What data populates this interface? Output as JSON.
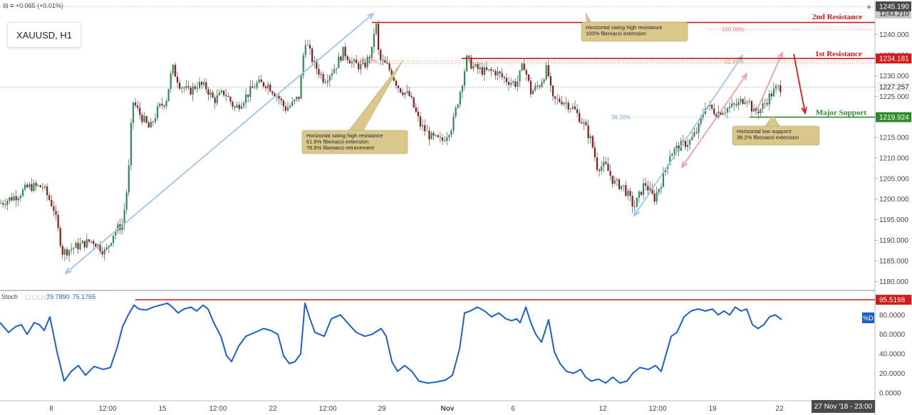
{
  "header": {
    "change_text": "+0.065 (+0.01%)",
    "symbol": "XAUUSD, H1"
  },
  "stoch_header": {
    "name": "Stoch",
    "k_value": "79.7890",
    "d_value": "75.1765",
    "d_badge": "%D"
  },
  "crosshair_date": "27 Nov '18 - 23:00",
  "colors": {
    "resistance": "#d11a1a",
    "support": "#2e8b2e",
    "candle_up": "#2e8b57",
    "candle_down": "#8b1a1a",
    "stoch_line": "#1e5fd0",
    "fib_blue_arrow": "#9ec3ee",
    "fib_pink_arrow": "#f0a0a8",
    "annotation_bg": "#d9c88a"
  },
  "chart_data": {
    "type": "candlestick",
    "symbol": "XAUUSD",
    "timeframe": "H1",
    "y_ticks": [
      "1245.000",
      "1240.000",
      "1235.000",
      "1230.000",
      "1225.000",
      "1220.000",
      "1215.000",
      "1210.000",
      "1205.000",
      "1200.000",
      "1195.000",
      "1190.000",
      "1185.000",
      "1180.000"
    ],
    "ylim": [
      1178.5,
      1246.5
    ],
    "x_ticks": [
      "8",
      "12:00",
      "15",
      "12:00",
      "22",
      "12:00",
      "29",
      "Nov",
      "6",
      "12",
      "12:00",
      "19",
      "22"
    ],
    "price_path": [
      [
        0,
        1199
      ],
      [
        25,
        1201
      ],
      [
        40,
        1203
      ],
      [
        60,
        1203
      ],
      [
        75,
        1198
      ],
      [
        88,
        1187
      ],
      [
        100,
        1188
      ],
      [
        115,
        1189
      ],
      [
        130,
        1190
      ],
      [
        148,
        1187
      ],
      [
        160,
        1192
      ],
      [
        172,
        1194
      ],
      [
        180,
        1205
      ],
      [
        186,
        1224
      ],
      [
        195,
        1221
      ],
      [
        210,
        1217
      ],
      [
        222,
        1222
      ],
      [
        233,
        1224
      ],
      [
        242,
        1232
      ],
      [
        252,
        1228
      ],
      [
        265,
        1226
      ],
      [
        278,
        1228
      ],
      [
        290,
        1227
      ],
      [
        300,
        1224
      ],
      [
        315,
        1226
      ],
      [
        330,
        1222
      ],
      [
        345,
        1225
      ],
      [
        360,
        1228
      ],
      [
        375,
        1228
      ],
      [
        390,
        1225
      ],
      [
        400,
        1222
      ],
      [
        410,
        1223
      ],
      [
        420,
        1225
      ],
      [
        428,
        1239
      ],
      [
        440,
        1233
      ],
      [
        455,
        1229
      ],
      [
        470,
        1232
      ],
      [
        482,
        1236
      ],
      [
        495,
        1233
      ],
      [
        510,
        1232
      ],
      [
        522,
        1236
      ],
      [
        527,
        1244
      ],
      [
        532,
        1234
      ],
      [
        545,
        1232
      ],
      [
        560,
        1227
      ],
      [
        575,
        1225
      ],
      [
        590,
        1218
      ],
      [
        605,
        1215
      ],
      [
        620,
        1214
      ],
      [
        635,
        1218
      ],
      [
        648,
        1228
      ],
      [
        655,
        1234
      ],
      [
        665,
        1232
      ],
      [
        680,
        1231
      ],
      [
        695,
        1231
      ],
      [
        710,
        1229
      ],
      [
        725,
        1228
      ],
      [
        735,
        1233
      ],
      [
        745,
        1226
      ],
      [
        758,
        1228
      ],
      [
        768,
        1232
      ],
      [
        775,
        1224
      ],
      [
        790,
        1224
      ],
      [
        805,
        1222
      ],
      [
        820,
        1218
      ],
      [
        830,
        1214
      ],
      [
        838,
        1208
      ],
      [
        850,
        1208
      ],
      [
        862,
        1204
      ],
      [
        875,
        1203
      ],
      [
        890,
        1198
      ],
      [
        905,
        1204
      ],
      [
        918,
        1200
      ],
      [
        930,
        1205
      ],
      [
        940,
        1211
      ],
      [
        955,
        1213
      ],
      [
        968,
        1214
      ],
      [
        980,
        1217
      ],
      [
        990,
        1223
      ],
      [
        1005,
        1221
      ],
      [
        1020,
        1222
      ],
      [
        1035,
        1223
      ],
      [
        1048,
        1225
      ],
      [
        1058,
        1221
      ],
      [
        1068,
        1222
      ],
      [
        1080,
        1225
      ],
      [
        1090,
        1227
      ],
      [
        1097,
        1227.257
      ]
    ],
    "price_tags": [
      {
        "value": "1245.190",
        "kind": "current-high"
      },
      {
        "value": "1243.210",
        "kind": "second-resistance"
      },
      {
        "value": "1234.181",
        "kind": "first-resistance"
      },
      {
        "value": "1227.257",
        "kind": "last-price"
      },
      {
        "value": "1219.924",
        "kind": "major-support"
      }
    ],
    "levels": [
      {
        "name": "2nd Resistance",
        "price": 1243.21,
        "color": "#d11a1a"
      },
      {
        "name": "1st Resistance",
        "price": 1234.181,
        "color": "#d11a1a"
      },
      {
        "name": "Major Support",
        "price": 1219.924,
        "color": "#2e8b2e"
      }
    ],
    "fib_labels": [
      {
        "text": "100.00%",
        "price": 1241.3
      },
      {
        "text": "78.60%",
        "price": 1233.6
      },
      {
        "text": "61.80%",
        "price": 1233.4
      },
      {
        "text": "38.20%",
        "price": 1219.9
      }
    ],
    "annotations": [
      {
        "lines": [
          "Horizontal swing high resistance",
          "100% fibonacci extension"
        ]
      },
      {
        "lines": [
          "Horizontal swing high resistance",
          "61.8% fibonacci extension",
          "78.6% fibonacci retracement"
        ]
      },
      {
        "lines": [
          "Horizontal low supporrt",
          "38.2% fibonacci extension"
        ]
      }
    ],
    "stochastic": {
      "y_ticks": [
        "80.0000",
        "60.0000",
        "40.0000",
        "20.0000",
        "0.0000"
      ],
      "ylim": [
        -6,
        100
      ],
      "level": "95.5198",
      "d_path": [
        [
          0,
          72
        ],
        [
          12,
          62
        ],
        [
          22,
          68
        ],
        [
          30,
          70
        ],
        [
          38,
          60
        ],
        [
          48,
          72
        ],
        [
          55,
          70
        ],
        [
          62,
          64
        ],
        [
          70,
          78
        ],
        [
          80,
          42
        ],
        [
          90,
          12
        ],
        [
          100,
          22
        ],
        [
          110,
          28
        ],
        [
          120,
          18
        ],
        [
          132,
          27
        ],
        [
          145,
          24
        ],
        [
          155,
          26
        ],
        [
          165,
          48
        ],
        [
          172,
          68
        ],
        [
          180,
          80
        ],
        [
          188,
          90
        ],
        [
          195,
          86
        ],
        [
          205,
          85
        ],
        [
          215,
          88
        ],
        [
          225,
          90
        ],
        [
          235,
          92
        ],
        [
          242,
          88
        ],
        [
          250,
          82
        ],
        [
          258,
          86
        ],
        [
          268,
          88
        ],
        [
          276,
          84
        ],
        [
          285,
          90
        ],
        [
          292,
          86
        ],
        [
          300,
          72
        ],
        [
          310,
          58
        ],
        [
          318,
          38
        ],
        [
          325,
          32
        ],
        [
          335,
          48
        ],
        [
          345,
          58
        ],
        [
          358,
          62
        ],
        [
          370,
          66
        ],
        [
          380,
          64
        ],
        [
          390,
          60
        ],
        [
          398,
          38
        ],
        [
          406,
          30
        ],
        [
          414,
          32
        ],
        [
          422,
          40
        ],
        [
          428,
          92
        ],
        [
          435,
          76
        ],
        [
          442,
          62
        ],
        [
          455,
          58
        ],
        [
          465,
          76
        ],
        [
          478,
          80
        ],
        [
          490,
          70
        ],
        [
          500,
          62
        ],
        [
          512,
          58
        ],
        [
          522,
          60
        ],
        [
          535,
          66
        ],
        [
          542,
          58
        ],
        [
          550,
          32
        ],
        [
          558,
          22
        ],
        [
          568,
          28
        ],
        [
          578,
          22
        ],
        [
          588,
          12
        ],
        [
          600,
          10
        ],
        [
          612,
          11
        ],
        [
          625,
          13
        ],
        [
          635,
          18
        ],
        [
          645,
          45
        ],
        [
          652,
          82
        ],
        [
          660,
          84
        ],
        [
          670,
          88
        ],
        [
          680,
          84
        ],
        [
          690,
          78
        ],
        [
          700,
          82
        ],
        [
          710,
          76
        ],
        [
          718,
          74
        ],
        [
          725,
          76
        ],
        [
          730,
          72
        ],
        [
          738,
          88
        ],
        [
          745,
          72
        ],
        [
          752,
          60
        ],
        [
          760,
          52
        ],
        [
          770,
          75
        ],
        [
          778,
          42
        ],
        [
          786,
          30
        ],
        [
          795,
          22
        ],
        [
          805,
          20
        ],
        [
          815,
          24
        ],
        [
          822,
          16
        ],
        [
          830,
          12
        ],
        [
          840,
          14
        ],
        [
          850,
          10
        ],
        [
          860,
          16
        ],
        [
          870,
          10
        ],
        [
          880,
          12
        ],
        [
          888,
          20
        ],
        [
          898,
          26
        ],
        [
          910,
          24
        ],
        [
          920,
          28
        ],
        [
          928,
          22
        ],
        [
          935,
          40
        ],
        [
          942,
          58
        ],
        [
          950,
          62
        ],
        [
          960,
          78
        ],
        [
          970,
          84
        ],
        [
          980,
          86
        ],
        [
          990,
          84
        ],
        [
          1000,
          86
        ],
        [
          1008,
          80
        ],
        [
          1016,
          84
        ],
        [
          1024,
          80
        ],
        [
          1032,
          88
        ],
        [
          1040,
          84
        ],
        [
          1048,
          86
        ],
        [
          1056,
          70
        ],
        [
          1064,
          66
        ],
        [
          1072,
          70
        ],
        [
          1080,
          78
        ],
        [
          1088,
          80
        ],
        [
          1097,
          75.18
        ]
      ]
    }
  }
}
